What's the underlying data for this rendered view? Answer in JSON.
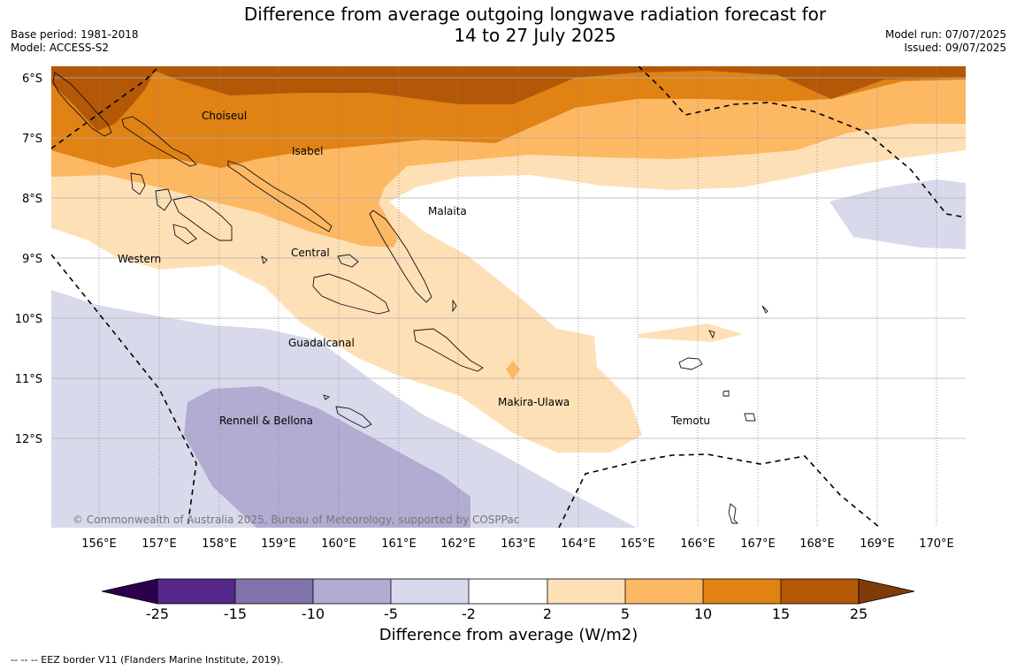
{
  "title": {
    "line1": "Difference from average outgoing longwave radiation forecast for",
    "line2": "14 to 27 July 2025"
  },
  "meta": {
    "base_period": "Base period: 1981-2018",
    "model": "Model: ACCESS-S2",
    "model_run": "Model run: 07/07/2025",
    "issued": "Issued: 09/07/2025"
  },
  "map": {
    "lat_labels": [
      "6°S",
      "7°S",
      "8°S",
      "9°S",
      "10°S",
      "11°S",
      "12°S"
    ],
    "lon_labels": [
      "156°E",
      "157°E",
      "158°E",
      "159°E",
      "160°E",
      "161°E",
      "162°E",
      "163°E",
      "164°E",
      "165°E",
      "166°E",
      "167°E",
      "168°E",
      "169°E",
      "170°E"
    ],
    "provinces": {
      "choiseul": "Choiseul",
      "isabel": "Isabel",
      "malaita": "Malaita",
      "western": "Western",
      "central": "Central",
      "guadalcanal": "Guadalcanal",
      "rennell": "Rennell & Bellona",
      "makira": "Makira-Ulawa",
      "temotu": "Temotu"
    },
    "copyright": "© Commonwealth of Australia 2025, Bureau of Meteorology, supported by COSPPac"
  },
  "colorbar": {
    "title": "Difference from average (W/m2)",
    "ticks": [
      "-25",
      "-15",
      "-10",
      "-5",
      "-2",
      "2",
      "5",
      "10",
      "15",
      "25"
    ],
    "colors": [
      "#2d004b",
      "#542788",
      "#8073ac",
      "#b2abd2",
      "#d8daeb",
      "#ffffff",
      "#fee0b6",
      "#fdb863",
      "#e08214",
      "#b35806",
      "#7f3b08"
    ]
  },
  "footnote": "--  --  -- EEZ border V11 (Flanders Marine Institute, 2019)."
}
